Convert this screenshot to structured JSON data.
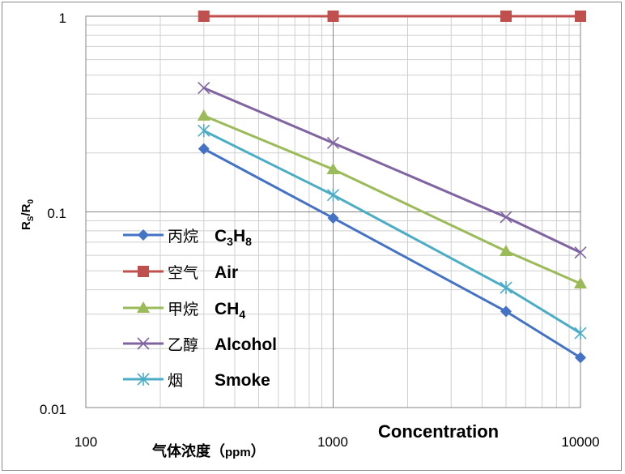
{
  "chart_data": {
    "type": "line",
    "x_scale": "log",
    "y_scale": "log",
    "xlim": [
      100,
      10000
    ],
    "ylim": [
      0.01,
      1
    ],
    "x": [
      300,
      1000,
      5000,
      10000
    ],
    "x_tick_labels": [
      "100",
      "1000",
      "10000"
    ],
    "y_tick_labels": [
      "0.01",
      "0.1",
      "1"
    ],
    "ylabel_main": "R",
    "ylabel_sub1": "S",
    "ylabel_mid": "/R",
    "ylabel_sub2": "0",
    "xlabel_cn": "气体浓度（",
    "xlabel_unit": "ppm",
    "xlabel_close": "）",
    "xlabel_en": "Concentration",
    "grid": true,
    "legend_position": "left-middle",
    "series": [
      {
        "label_cn": "丙烷",
        "label_en": "C",
        "sub_a": "3",
        "mid": "H",
        "sub_b": "8",
        "color": "#4472c4",
        "marker": "diamond",
        "values": [
          0.21,
          0.093,
          0.031,
          0.018
        ]
      },
      {
        "label_cn": "空气",
        "label_en": "Air",
        "sub_a": "",
        "mid": "",
        "sub_b": "",
        "color": "#c0504d",
        "marker": "square",
        "values": [
          1.0,
          1.0,
          1.0,
          1.0
        ]
      },
      {
        "label_cn": "甲烷",
        "label_en": "CH",
        "sub_a": "4",
        "mid": "",
        "sub_b": "",
        "color": "#9bbb59",
        "marker": "triangle",
        "values": [
          0.31,
          0.165,
          0.063,
          0.043
        ]
      },
      {
        "label_cn": "乙醇",
        "label_en": "Alcohol",
        "sub_a": "",
        "mid": "",
        "sub_b": "",
        "color": "#8064a2",
        "marker": "x",
        "values": [
          0.43,
          0.225,
          0.094,
          0.062
        ]
      },
      {
        "label_cn": "烟",
        "label_en": "Smoke",
        "sub_a": "",
        "mid": "",
        "sub_b": "",
        "color": "#4bacc6",
        "marker": "star",
        "values": [
          0.26,
          0.122,
          0.041,
          0.024
        ]
      }
    ]
  }
}
